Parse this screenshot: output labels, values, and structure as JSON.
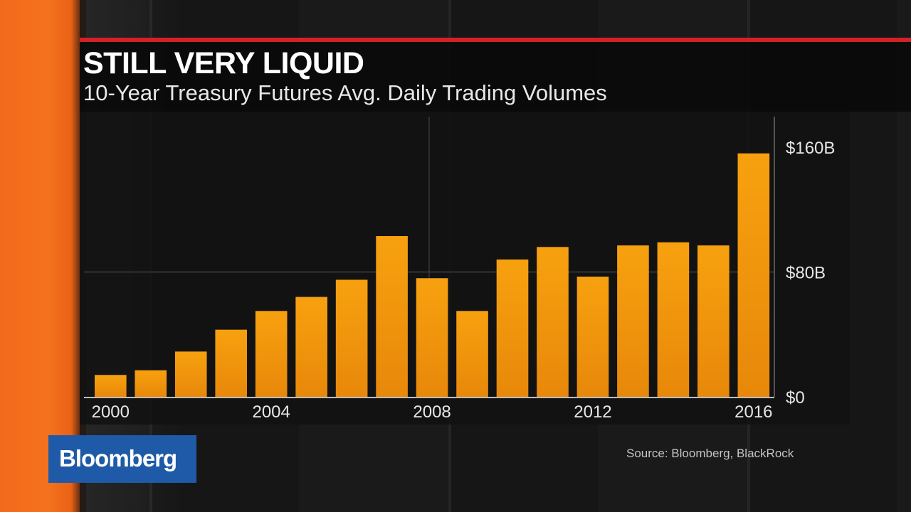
{
  "header": {
    "title": "STILL VERY LIQUID",
    "subtitle": "10-Year Treasury Futures Avg. Daily Trading Volumes"
  },
  "brand": {
    "logo_text": "Bloomberg",
    "logo_color": "#1e5aa8",
    "accent_red": "#d32128",
    "accent_orange": "#f36a1c"
  },
  "footer": {
    "source": "Source: Bloomberg, BlackRock"
  },
  "chart_data": {
    "type": "bar",
    "title": "STILL VERY LIQUID",
    "subtitle": "10-Year Treasury Futures Avg. Daily Trading Volumes",
    "x": [
      2000,
      2001,
      2002,
      2003,
      2004,
      2005,
      2006,
      2007,
      2008,
      2009,
      2010,
      2011,
      2012,
      2013,
      2014,
      2015,
      2016
    ],
    "values": [
      14,
      17,
      29,
      43,
      55,
      64,
      75,
      103,
      76,
      55,
      88,
      96,
      77,
      97,
      99,
      97,
      156
    ],
    "unit": "billions USD",
    "x_tick_labels": [
      "2000",
      "2004",
      "2008",
      "2012",
      "2016"
    ],
    "x_tick_values": [
      2000,
      2004,
      2008,
      2012,
      2016
    ],
    "y_tick_labels": [
      "$0",
      "$80B",
      "$160B"
    ],
    "y_tick_values": [
      0,
      80,
      160
    ],
    "ylim": [
      0,
      175
    ],
    "y_axis_side": "right",
    "grid": true,
    "bar_color": "#f29a0e"
  }
}
